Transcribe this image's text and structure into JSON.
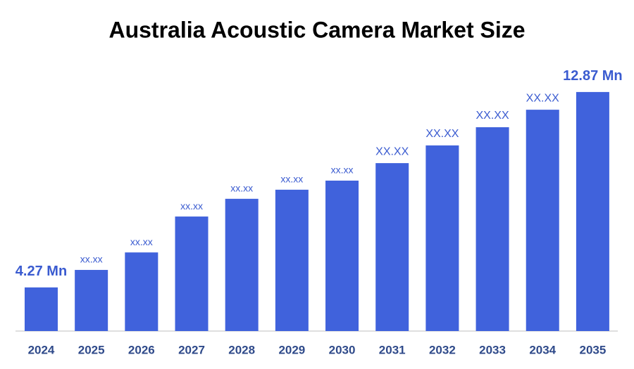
{
  "chart_data": {
    "type": "bar",
    "title": "Australia Acoustic Camera Market Size",
    "categories": [
      "2024",
      "2025",
      "2026",
      "2027",
      "2028",
      "2029",
      "2030",
      "2031",
      "2032",
      "2033",
      "2034",
      "2035"
    ],
    "values": [
      4.27,
      5.04,
      5.81,
      7.39,
      8.17,
      8.57,
      8.97,
      9.74,
      10.52,
      11.32,
      12.09,
      12.87
    ],
    "value_labels": [
      "4.27 Mn",
      "xx.xx",
      "xx.xx",
      "xx.xx",
      "xx.xx",
      "xx.xx",
      "xx.xx",
      "XX.XX",
      "XX.XX",
      "XX.XX",
      "XX.XX",
      "12.87 Mn"
    ],
    "color": "#4062dc",
    "ylim": [
      2.35,
      13.3
    ]
  }
}
